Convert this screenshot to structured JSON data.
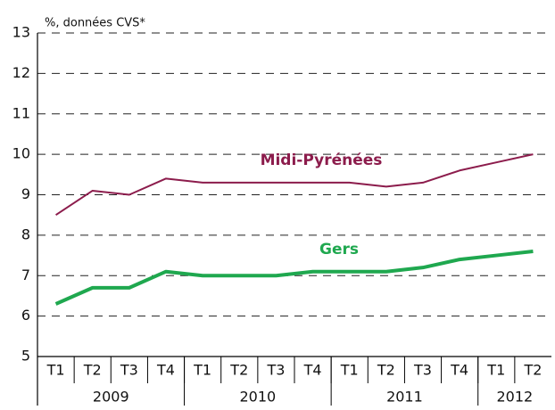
{
  "chart_data": {
    "type": "line",
    "y_label": "%, données CVS*",
    "categories": [
      "T1",
      "T2",
      "T3",
      "T4",
      "T1",
      "T2",
      "T3",
      "T4",
      "T1",
      "T2",
      "T3",
      "T4",
      "T1",
      "T2"
    ],
    "groups": [
      {
        "label": "2009",
        "size": 4
      },
      {
        "label": "2010",
        "size": 4
      },
      {
        "label": "2011",
        "size": 4
      },
      {
        "label": "2012",
        "size": 2
      }
    ],
    "series": [
      {
        "name": "Midi-Pyrénées",
        "color": "#8c1c4c",
        "width": 2,
        "values": [
          8.5,
          9.1,
          9.0,
          9.4,
          9.3,
          9.3,
          9.3,
          9.3,
          9.3,
          9.2,
          9.3,
          9.6,
          9.8,
          10.0
        ]
      },
      {
        "name": "Gers",
        "color": "#1fa84f",
        "width": 4,
        "values": [
          6.3,
          6.7,
          6.7,
          7.1,
          7.0,
          7.0,
          7.0,
          7.1,
          7.1,
          7.1,
          7.2,
          7.4,
          7.5,
          7.6
        ]
      }
    ],
    "ylim": [
      5,
      13
    ],
    "yticks": [
      5,
      6,
      7,
      8,
      9,
      10,
      11,
      12,
      13
    ],
    "grid": true
  }
}
